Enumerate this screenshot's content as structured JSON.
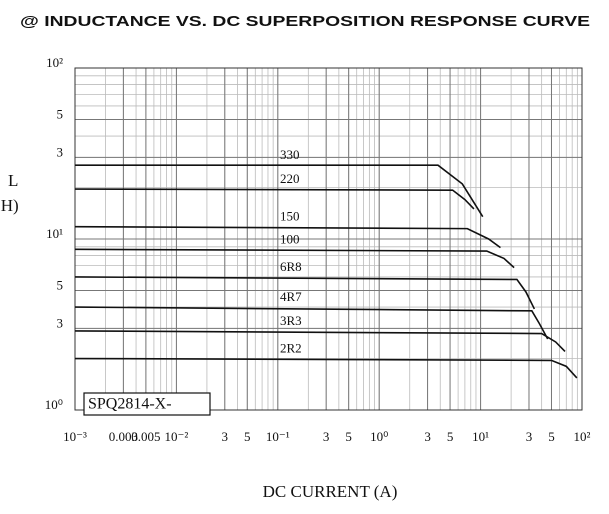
{
  "chart_data": {
    "type": "line",
    "title": "@ INDUCTANCE  VS. DC SUPERPOSITION  RESPONSE CURVE",
    "x_label": "DC CURRENT (A)",
    "y_label": [
      "L",
      "(μH)"
    ],
    "annotation": "SPQ2814-X-",
    "log_x": true,
    "log_y": true,
    "grid": true,
    "xlim": [
      0.001,
      100
    ],
    "ylim": [
      1,
      100
    ],
    "xticks": [
      {
        "value": 0.001,
        "label": "10⁻³"
      },
      0.003,
      0.005,
      {
        "value": 0.01,
        "label": "10⁻²"
      },
      {
        "value": 0.03,
        "label": "3"
      },
      {
        "value": 0.05,
        "label": "5"
      },
      {
        "value": 0.1,
        "label": "10⁻¹"
      },
      {
        "value": 0.3,
        "label": "3"
      },
      {
        "value": 0.5,
        "label": "5"
      },
      {
        "value": 1,
        "label": "10⁰"
      },
      3,
      5,
      {
        "value": 10,
        "label": "10¹"
      },
      {
        "value": 30,
        "label": "3"
      },
      {
        "value": 50,
        "label": "5"
      },
      {
        "value": 100,
        "label": "10²"
      }
    ],
    "yticks": [
      {
        "value": 1,
        "label": "10⁰"
      },
      3,
      5,
      {
        "value": 10,
        "label": "10¹"
      },
      {
        "value": 30,
        "label": "3"
      },
      {
        "value": 50,
        "label": "5"
      },
      {
        "value": 100,
        "label": "10²"
      }
    ],
    "series": [
      {
        "name": "330",
        "color": "#111111",
        "x": [
          0.001,
          3.8,
          6.6,
          10.5
        ],
        "values": [
          27,
          27,
          21,
          13.5
        ]
      },
      {
        "name": "220",
        "color": "#111111",
        "x": [
          0.001,
          5.3,
          7.0,
          8.6
        ],
        "values": [
          19.6,
          19.3,
          17,
          15
        ]
      },
      {
        "name": "150",
        "color": "#111111",
        "x": [
          0.001,
          7.4,
          12,
          15.7
        ],
        "values": [
          11.8,
          11.5,
          10,
          8.9
        ]
      },
      {
        "name": "100",
        "color": "#111111",
        "x": [
          0.001,
          11.5,
          17,
          21.4
        ],
        "values": [
          8.7,
          8.5,
          7.7,
          6.8
        ]
      },
      {
        "name": "6R8",
        "color": "#111111",
        "x": [
          0.001,
          22.8,
          28,
          33.9
        ],
        "values": [
          6.0,
          5.8,
          4.9,
          3.9
        ]
      },
      {
        "name": "4R7",
        "color": "#111111",
        "x": [
          0.001,
          32,
          38,
          45.9
        ],
        "values": [
          4.0,
          3.8,
          3.2,
          2.6
        ]
      },
      {
        "name": "3R3",
        "color": "#111111",
        "x": [
          0.001,
          40,
          55,
          68
        ],
        "values": [
          2.9,
          2.8,
          2.5,
          2.2
        ]
      },
      {
        "name": "2R2",
        "color": "#111111",
        "x": [
          0.001,
          50,
          70,
          89
        ],
        "values": [
          2.0,
          1.95,
          1.8,
          1.54
        ]
      }
    ]
  }
}
